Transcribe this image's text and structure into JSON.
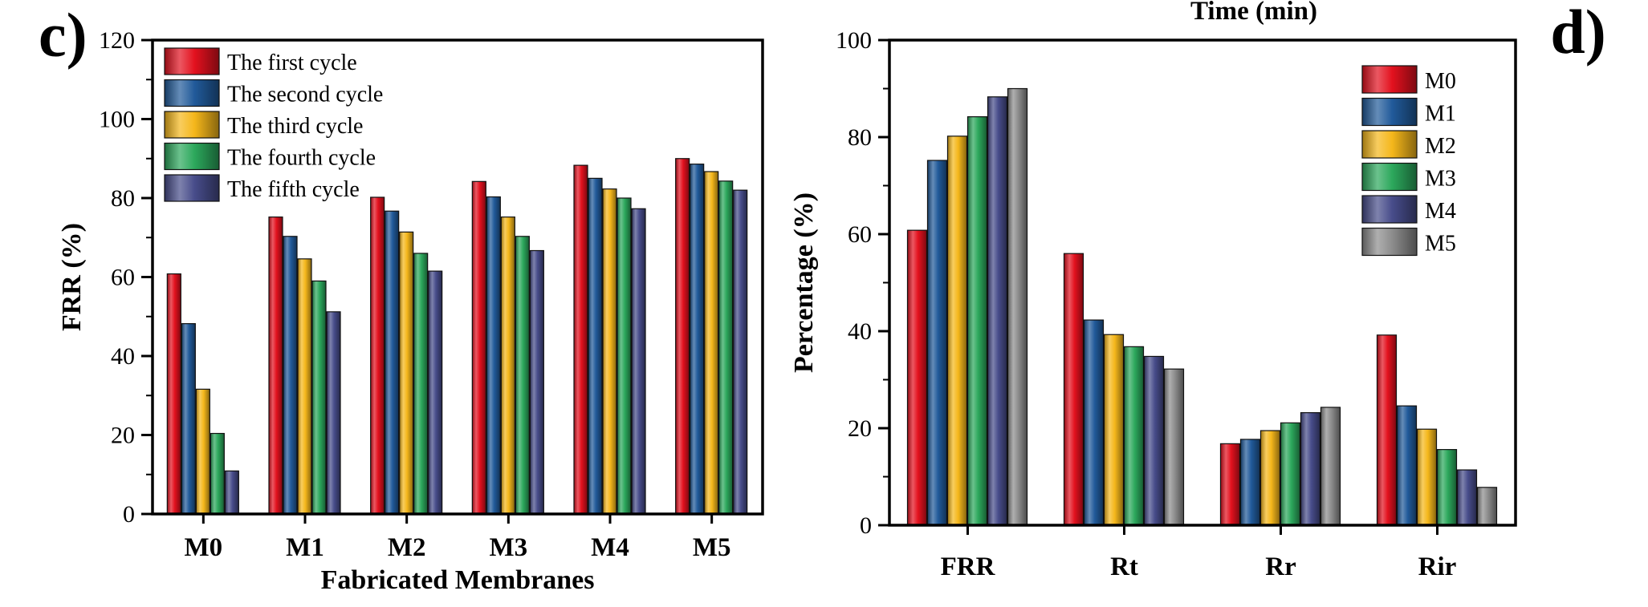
{
  "top_fragment": "Time (min)",
  "colors": [
    "#e3111e",
    "#215a9a",
    "#f5b71b",
    "#2ca85c",
    "#474c8a",
    "#8c8c8c"
  ],
  "chart_data": [
    {
      "type": "bar",
      "panel_label": "c)",
      "xlabel": "Fabricated Membranes",
      "ylabel": "FRR (%)",
      "ylim": [
        0,
        120
      ],
      "yticks": [
        "0",
        "20",
        "40",
        "60",
        "80",
        "100",
        "120"
      ],
      "grid": false,
      "legend_position": "top-left",
      "categories": [
        "M0",
        "M1",
        "M2",
        "M3",
        "M4",
        "M5"
      ],
      "series": [
        {
          "name": "The first cycle",
          "values": [
            60.8,
            75.2,
            80.2,
            84.2,
            88.3,
            90.0
          ]
        },
        {
          "name": "The second cycle",
          "values": [
            48.2,
            70.3,
            76.7,
            80.3,
            85.0,
            88.6
          ]
        },
        {
          "name": "The third cycle",
          "values": [
            31.6,
            64.6,
            71.4,
            75.2,
            82.3,
            86.7
          ]
        },
        {
          "name": "The fourth cycle",
          "values": [
            20.4,
            59.0,
            66.0,
            70.3,
            80.0,
            84.3
          ]
        },
        {
          "name": "The fifth cycle",
          "values": [
            10.9,
            51.2,
            61.5,
            66.7,
            77.3,
            82.0
          ]
        }
      ]
    },
    {
      "type": "bar",
      "panel_label": "d)",
      "xlabel": "",
      "ylabel": "Percentage (%)",
      "ylim": [
        0,
        100
      ],
      "yticks": [
        "0",
        "20",
        "40",
        "60",
        "80",
        "100"
      ],
      "grid": false,
      "legend_position": "top-right",
      "categories": [
        "FRR",
        "Rt",
        "Rr",
        "Rir"
      ],
      "series": [
        {
          "name": "M0",
          "values": [
            60.8,
            56.0,
            16.8,
            39.2
          ]
        },
        {
          "name": "M1",
          "values": [
            75.2,
            42.3,
            17.7,
            24.6
          ]
        },
        {
          "name": "M2",
          "values": [
            80.2,
            39.3,
            19.5,
            19.8
          ]
        },
        {
          "name": "M3",
          "values": [
            84.2,
            36.8,
            21.1,
            15.6
          ]
        },
        {
          "name": "M4",
          "values": [
            88.3,
            34.8,
            23.2,
            11.4
          ]
        },
        {
          "name": "M5",
          "values": [
            90.0,
            32.2,
            24.3,
            7.8
          ]
        }
      ]
    }
  ]
}
